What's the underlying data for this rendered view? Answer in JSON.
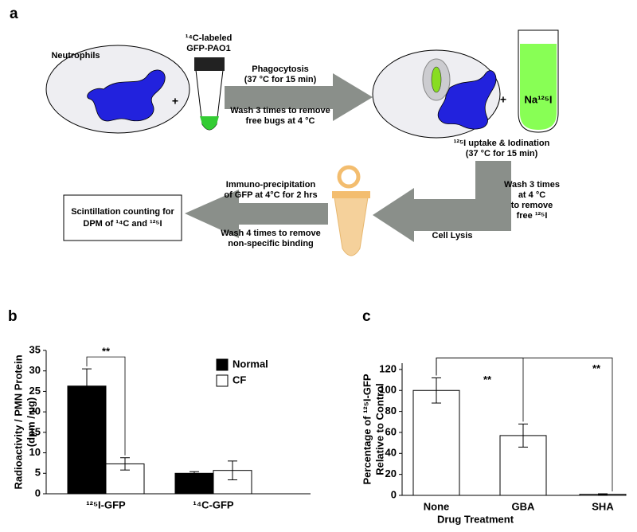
{
  "diagram": {
    "label": "a",
    "neutrophils": "Neutrophils",
    "bacteria": [
      "¹⁴C-labeled",
      "GFP-PAO1"
    ],
    "plus": [
      "+",
      "+"
    ],
    "phagocytosis": [
      "Phagocytosis",
      "(37 °C for 15 min)"
    ],
    "wash_bugs": [
      "Wash 3 times to remove",
      "free bugs at 4 °C"
    ],
    "tube_label": "Na¹²⁵I",
    "iodination": [
      "¹²⁵I uptake & Iodination",
      "(37 °C for 15 min)"
    ],
    "wash_iodide": [
      "Wash 3 times",
      "at 4 °C",
      "to remove",
      "free ¹²⁵I"
    ],
    "lysis": "Cell Lysis",
    "ip": [
      "Immuno-precipitation",
      "of GFP at 4°C for 2 hrs"
    ],
    "wash_binding": [
      "Wash 4 times to remove",
      "non-specific binding"
    ],
    "counting": [
      "Scintillation counting for",
      "DPM of ¹⁴C and ¹²⁵I"
    ]
  },
  "chart_data": [
    {
      "label": "b",
      "type": "bar",
      "categories": [
        "¹²⁵I-GFP",
        "¹⁴C-GFP"
      ],
      "series": [
        {
          "name": "Normal",
          "color": "#000000",
          "values": [
            26.3,
            5.0
          ],
          "errors": [
            4.2,
            0.4
          ]
        },
        {
          "name": "CF",
          "color": "#ffffff",
          "values": [
            7.3,
            5.7
          ],
          "errors": [
            1.5,
            2.3
          ]
        }
      ],
      "ylabel": [
        "Radioactivity / PMN Protein",
        "(dpm / µg)"
      ],
      "ylim": [
        0,
        35
      ],
      "yticks": [
        0,
        5,
        10,
        15,
        20,
        25,
        30,
        35
      ],
      "annotations": [
        "**"
      ],
      "legend": "upper right"
    },
    {
      "label": "c",
      "type": "bar",
      "categories": [
        "None",
        "GBA",
        "SHA"
      ],
      "values": [
        100,
        57,
        1
      ],
      "errors": [
        12,
        11,
        0.5
      ],
      "color": "#ffffff",
      "xlabel": "Drug Treatment",
      "ylabel": [
        "Percentage of ¹²⁵I-GFP",
        "Relative to Control"
      ],
      "ylim": [
        0,
        126
      ],
      "yticks": [
        0,
        20,
        40,
        60,
        80,
        100,
        120
      ],
      "annotations": [
        "**",
        "**"
      ]
    }
  ]
}
